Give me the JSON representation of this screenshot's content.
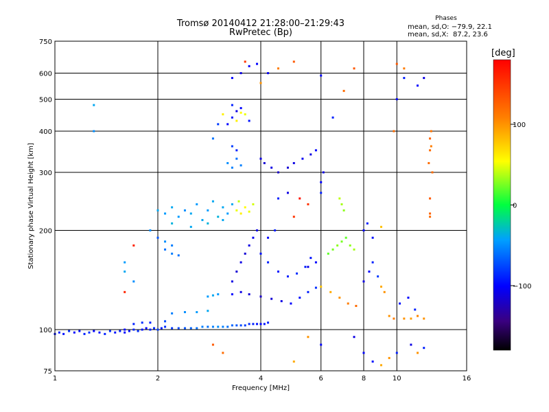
{
  "chart_data": {
    "type": "scatter",
    "title": "Tromsø 20140412 21:28:00–21:29:43",
    "subtitle": "RwPretec (Bp)",
    "xlabel": "Frequency [MHz]",
    "ylabel": "Stationary phase Virtual Height [km]",
    "x_scale": "log",
    "y_scale": "log",
    "xlim": [
      1,
      16
    ],
    "ylim": [
      75,
      750
    ],
    "x_ticks": [
      1,
      2,
      4,
      6,
      8,
      10,
      16
    ],
    "y_ticks": [
      75,
      100,
      200,
      300,
      400,
      500,
      600,
      750
    ],
    "grid": true,
    "stats": {
      "header": "Phases",
      "line1": "mean, sd,O: −79.9, 22.1",
      "line2": "mean, sd,X:  87.2, 23.6"
    },
    "colorbar": {
      "label": "[deg]",
      "range": [
        -180,
        180
      ],
      "ticks": [
        100,
        0,
        -100
      ]
    },
    "series": [
      {
        "points": [
          [
            1.0,
            97,
            -95
          ],
          [
            1.03,
            98,
            -90
          ],
          [
            1.06,
            97,
            -95
          ],
          [
            1.1,
            99,
            -85
          ],
          [
            1.14,
            98,
            -100
          ],
          [
            1.18,
            99,
            -95
          ],
          [
            1.22,
            97,
            -90
          ],
          [
            1.26,
            98,
            -85
          ],
          [
            1.3,
            99,
            -100
          ],
          [
            1.35,
            98,
            -95
          ],
          [
            1.4,
            97,
            -90
          ],
          [
            1.45,
            99,
            -85
          ],
          [
            1.5,
            98,
            -95
          ],
          [
            1.55,
            99,
            -90
          ],
          [
            1.6,
            98,
            -100
          ],
          [
            1.65,
            99,
            -95
          ],
          [
            1.7,
            100,
            -90
          ],
          [
            1.75,
            99,
            -85
          ],
          [
            1.8,
            100,
            -95
          ],
          [
            1.85,
            101,
            -100
          ],
          [
            1.9,
            100,
            -90
          ],
          [
            1.95,
            101,
            -85
          ],
          [
            2.0,
            100,
            -80
          ],
          [
            2.05,
            101,
            -90
          ],
          [
            2.1,
            102,
            -85
          ],
          [
            2.2,
            101,
            -80
          ],
          [
            2.3,
            101,
            -75
          ],
          [
            2.4,
            101,
            -70
          ],
          [
            2.5,
            101,
            -65
          ],
          [
            2.6,
            101,
            -60
          ],
          [
            2.7,
            102,
            -55
          ],
          [
            2.8,
            102,
            -60
          ],
          [
            2.9,
            102,
            -55
          ],
          [
            3.0,
            102,
            -50
          ],
          [
            3.1,
            102,
            -55
          ],
          [
            3.2,
            102,
            -60
          ],
          [
            3.3,
            103,
            -65
          ],
          [
            3.4,
            103,
            -70
          ],
          [
            3.5,
            103,
            -75
          ],
          [
            3.6,
            103,
            -80
          ],
          [
            3.7,
            104,
            -85
          ],
          [
            3.8,
            104,
            -90
          ],
          [
            3.9,
            104,
            -95
          ],
          [
            4.0,
            104,
            -100
          ],
          [
            4.1,
            104,
            -95
          ],
          [
            4.2,
            105,
            -90
          ],
          [
            1.7,
            104,
            -90
          ],
          [
            1.8,
            105,
            -85
          ],
          [
            1.9,
            105,
            -90
          ],
          [
            2.1,
            106,
            -75
          ],
          [
            2.2,
            112,
            -55
          ],
          [
            2.4,
            113,
            -50
          ],
          [
            2.6,
            113,
            -45
          ],
          [
            2.8,
            114,
            -40
          ],
          [
            2.8,
            126,
            -45
          ],
          [
            2.9,
            127,
            -40
          ],
          [
            3.0,
            128,
            -45
          ],
          [
            3.3,
            128,
            -100
          ],
          [
            3.5,
            130,
            -110
          ],
          [
            3.7,
            128,
            -115
          ],
          [
            4.0,
            126,
            -120
          ],
          [
            4.3,
            124,
            -115
          ],
          [
            4.6,
            122,
            -110
          ],
          [
            4.9,
            120,
            -100
          ],
          [
            5.2,
            125,
            -95
          ],
          [
            5.5,
            130,
            -90
          ],
          [
            5.8,
            134,
            -85
          ],
          [
            5.5,
            155,
            -110
          ],
          [
            5.8,
            160,
            -100
          ],
          [
            3.3,
            140,
            -110
          ],
          [
            3.4,
            150,
            -115
          ],
          [
            3.5,
            160,
            -110
          ],
          [
            3.6,
            170,
            -115
          ],
          [
            3.7,
            180,
            -110
          ],
          [
            3.8,
            190,
            -105
          ],
          [
            3.9,
            200,
            -110
          ],
          [
            4.0,
            170,
            -95
          ],
          [
            4.2,
            160,
            -90
          ],
          [
            4.5,
            150,
            -95
          ],
          [
            4.8,
            145,
            -90
          ],
          [
            5.1,
            148,
            -85
          ],
          [
            5.4,
            155,
            -90
          ],
          [
            5.6,
            165,
            -95
          ],
          [
            2.1,
            175,
            -60
          ],
          [
            2.2,
            170,
            -55
          ],
          [
            2.3,
            168,
            -60
          ],
          [
            2.1,
            185,
            -50
          ],
          [
            2.2,
            180,
            -55
          ],
          [
            2.0,
            190,
            -70
          ],
          [
            2.0,
            230,
            -40
          ],
          [
            2.1,
            225,
            -45
          ],
          [
            2.2,
            235,
            -40
          ],
          [
            2.3,
            220,
            -45
          ],
          [
            2.4,
            230,
            -50
          ],
          [
            2.5,
            225,
            -40
          ],
          [
            2.6,
            240,
            -45
          ],
          [
            2.7,
            215,
            -40
          ],
          [
            2.8,
            230,
            -45
          ],
          [
            2.9,
            245,
            -40
          ],
          [
            3.0,
            220,
            -35
          ],
          [
            3.1,
            235,
            -40
          ],
          [
            3.2,
            225,
            -45
          ],
          [
            3.3,
            240,
            -40
          ],
          [
            2.2,
            210,
            -35
          ],
          [
            2.5,
            205,
            -40
          ],
          [
            2.8,
            210,
            -35
          ],
          [
            3.1,
            215,
            -40
          ],
          [
            3.4,
            230,
            50
          ],
          [
            3.5,
            225,
            60
          ],
          [
            3.6,
            235,
            55
          ],
          [
            3.7,
            228,
            50
          ],
          [
            3.8,
            240,
            45
          ],
          [
            3.45,
            245,
            40
          ],
          [
            3.2,
            320,
            -50
          ],
          [
            3.3,
            310,
            -55
          ],
          [
            3.4,
            330,
            -60
          ],
          [
            3.5,
            315,
            -55
          ],
          [
            3.3,
            360,
            -80
          ],
          [
            3.4,
            350,
            -90
          ],
          [
            3.2,
            420,
            -100
          ],
          [
            3.3,
            440,
            -95
          ],
          [
            3.4,
            460,
            -110
          ],
          [
            3.5,
            470,
            -100
          ],
          [
            3.3,
            480,
            -90
          ],
          [
            3.4,
            430,
            60
          ],
          [
            3.6,
            450,
            50
          ],
          [
            3.5,
            455,
            55
          ],
          [
            3.7,
            430,
            -95
          ],
          [
            3.3,
            580,
            -100
          ],
          [
            3.5,
            600,
            -110
          ],
          [
            3.7,
            630,
            -105
          ],
          [
            3.9,
            640,
            -100
          ],
          [
            4.0,
            330,
            -110
          ],
          [
            4.1,
            320,
            -115
          ],
          [
            4.3,
            310,
            -110
          ],
          [
            4.5,
            300,
            -120
          ],
          [
            4.8,
            310,
            -115
          ],
          [
            5.0,
            320,
            -110
          ],
          [
            5.3,
            330,
            -105
          ],
          [
            5.6,
            340,
            -110
          ],
          [
            5.8,
            350,
            -100
          ],
          [
            6.0,
            260,
            -90
          ],
          [
            6.0,
            280,
            -100
          ],
          [
            6.1,
            300,
            -110
          ],
          [
            6.3,
            170,
            20
          ],
          [
            6.5,
            175,
            25
          ],
          [
            6.7,
            180,
            30
          ],
          [
            6.9,
            185,
            25
          ],
          [
            7.1,
            190,
            20
          ],
          [
            7.3,
            180,
            30
          ],
          [
            7.5,
            175,
            35
          ],
          [
            6.8,
            250,
            40
          ],
          [
            6.9,
            240,
            35
          ],
          [
            7.0,
            230,
            30
          ],
          [
            6.0,
            135,
            80
          ],
          [
            6.4,
            130,
            90
          ],
          [
            6.8,
            125,
            100
          ],
          [
            7.2,
            120,
            110
          ],
          [
            7.6,
            118,
            120
          ],
          [
            8.0,
            140,
            -110
          ],
          [
            8.3,
            150,
            -100
          ],
          [
            8.5,
            160,
            -90
          ],
          [
            8.8,
            145,
            -80
          ],
          [
            9.0,
            135,
            90
          ],
          [
            9.2,
            130,
            100
          ],
          [
            9.5,
            110,
            100
          ],
          [
            9.8,
            108,
            110
          ],
          [
            10.5,
            108,
            100
          ],
          [
            11.0,
            108,
            95
          ],
          [
            11.5,
            110,
            105
          ],
          [
            12.0,
            108,
            100
          ],
          [
            10.2,
            120,
            -95
          ],
          [
            10.8,
            125,
            -100
          ],
          [
            11.3,
            115,
            -90
          ],
          [
            8.0,
            200,
            -100
          ],
          [
            8.2,
            210,
            -90
          ],
          [
            8.5,
            190,
            -95
          ],
          [
            9.0,
            205,
            80
          ],
          [
            7.5,
            95,
            -110
          ],
          [
            8.0,
            85,
            -100
          ],
          [
            8.5,
            80,
            -95
          ],
          [
            9.0,
            78,
            90
          ],
          [
            9.5,
            82,
            100
          ],
          [
            10.0,
            85,
            -90
          ],
          [
            5.0,
            80,
            90
          ],
          [
            5.5,
            95,
            100
          ],
          [
            6.0,
            90,
            -100
          ],
          [
            11.0,
            90,
            -110
          ],
          [
            11.5,
            85,
            100
          ],
          [
            12.0,
            88,
            -90
          ],
          [
            12.5,
            350,
            120
          ],
          [
            12.5,
            380,
            125
          ],
          [
            12.6,
            400,
            115
          ],
          [
            12.6,
            360,
            110
          ],
          [
            12.4,
            320,
            120
          ],
          [
            12.7,
            300,
            120
          ],
          [
            12.5,
            250,
            130
          ],
          [
            12.5,
            225,
            125
          ],
          [
            12.5,
            220,
            120
          ],
          [
            12.0,
            580,
            -110
          ],
          [
            10.0,
            500,
            -100
          ],
          [
            10.0,
            640,
            130
          ],
          [
            10.5,
            620,
            110
          ],
          [
            10.5,
            580,
            -90
          ],
          [
            11.5,
            550,
            -100
          ],
          [
            9.8,
            400,
            120
          ],
          [
            7.5,
            620,
            130
          ],
          [
            7.0,
            530,
            120
          ],
          [
            6.5,
            440,
            -90
          ],
          [
            6.0,
            590,
            -100
          ],
          [
            5.0,
            650,
            130
          ],
          [
            4.5,
            620,
            110
          ],
          [
            4.2,
            600,
            -105
          ],
          [
            4.0,
            560,
            100
          ],
          [
            3.6,
            650,
            150
          ],
          [
            3.1,
            450,
            60
          ],
          [
            3.0,
            420,
            -80
          ],
          [
            2.9,
            380,
            -60
          ],
          [
            1.3,
            480,
            -40
          ],
          [
            1.3,
            400,
            -50
          ],
          [
            1.6,
            150,
            -40
          ],
          [
            1.6,
            160,
            -45
          ],
          [
            1.6,
            130,
            160
          ],
          [
            1.7,
            180,
            160
          ],
          [
            1.7,
            140,
            -50
          ],
          [
            1.6,
            100,
            -100
          ],
          [
            1.9,
            200,
            -50
          ],
          [
            5.0,
            220,
            150
          ],
          [
            5.2,
            250,
            170
          ],
          [
            5.5,
            240,
            150
          ],
          [
            4.5,
            250,
            -90
          ],
          [
            4.8,
            260,
            -110
          ],
          [
            4.2,
            190,
            -100
          ],
          [
            4.4,
            200,
            -90
          ],
          [
            2.9,
            90,
            130
          ],
          [
            3.1,
            85,
            120
          ]
        ]
      }
    ]
  }
}
